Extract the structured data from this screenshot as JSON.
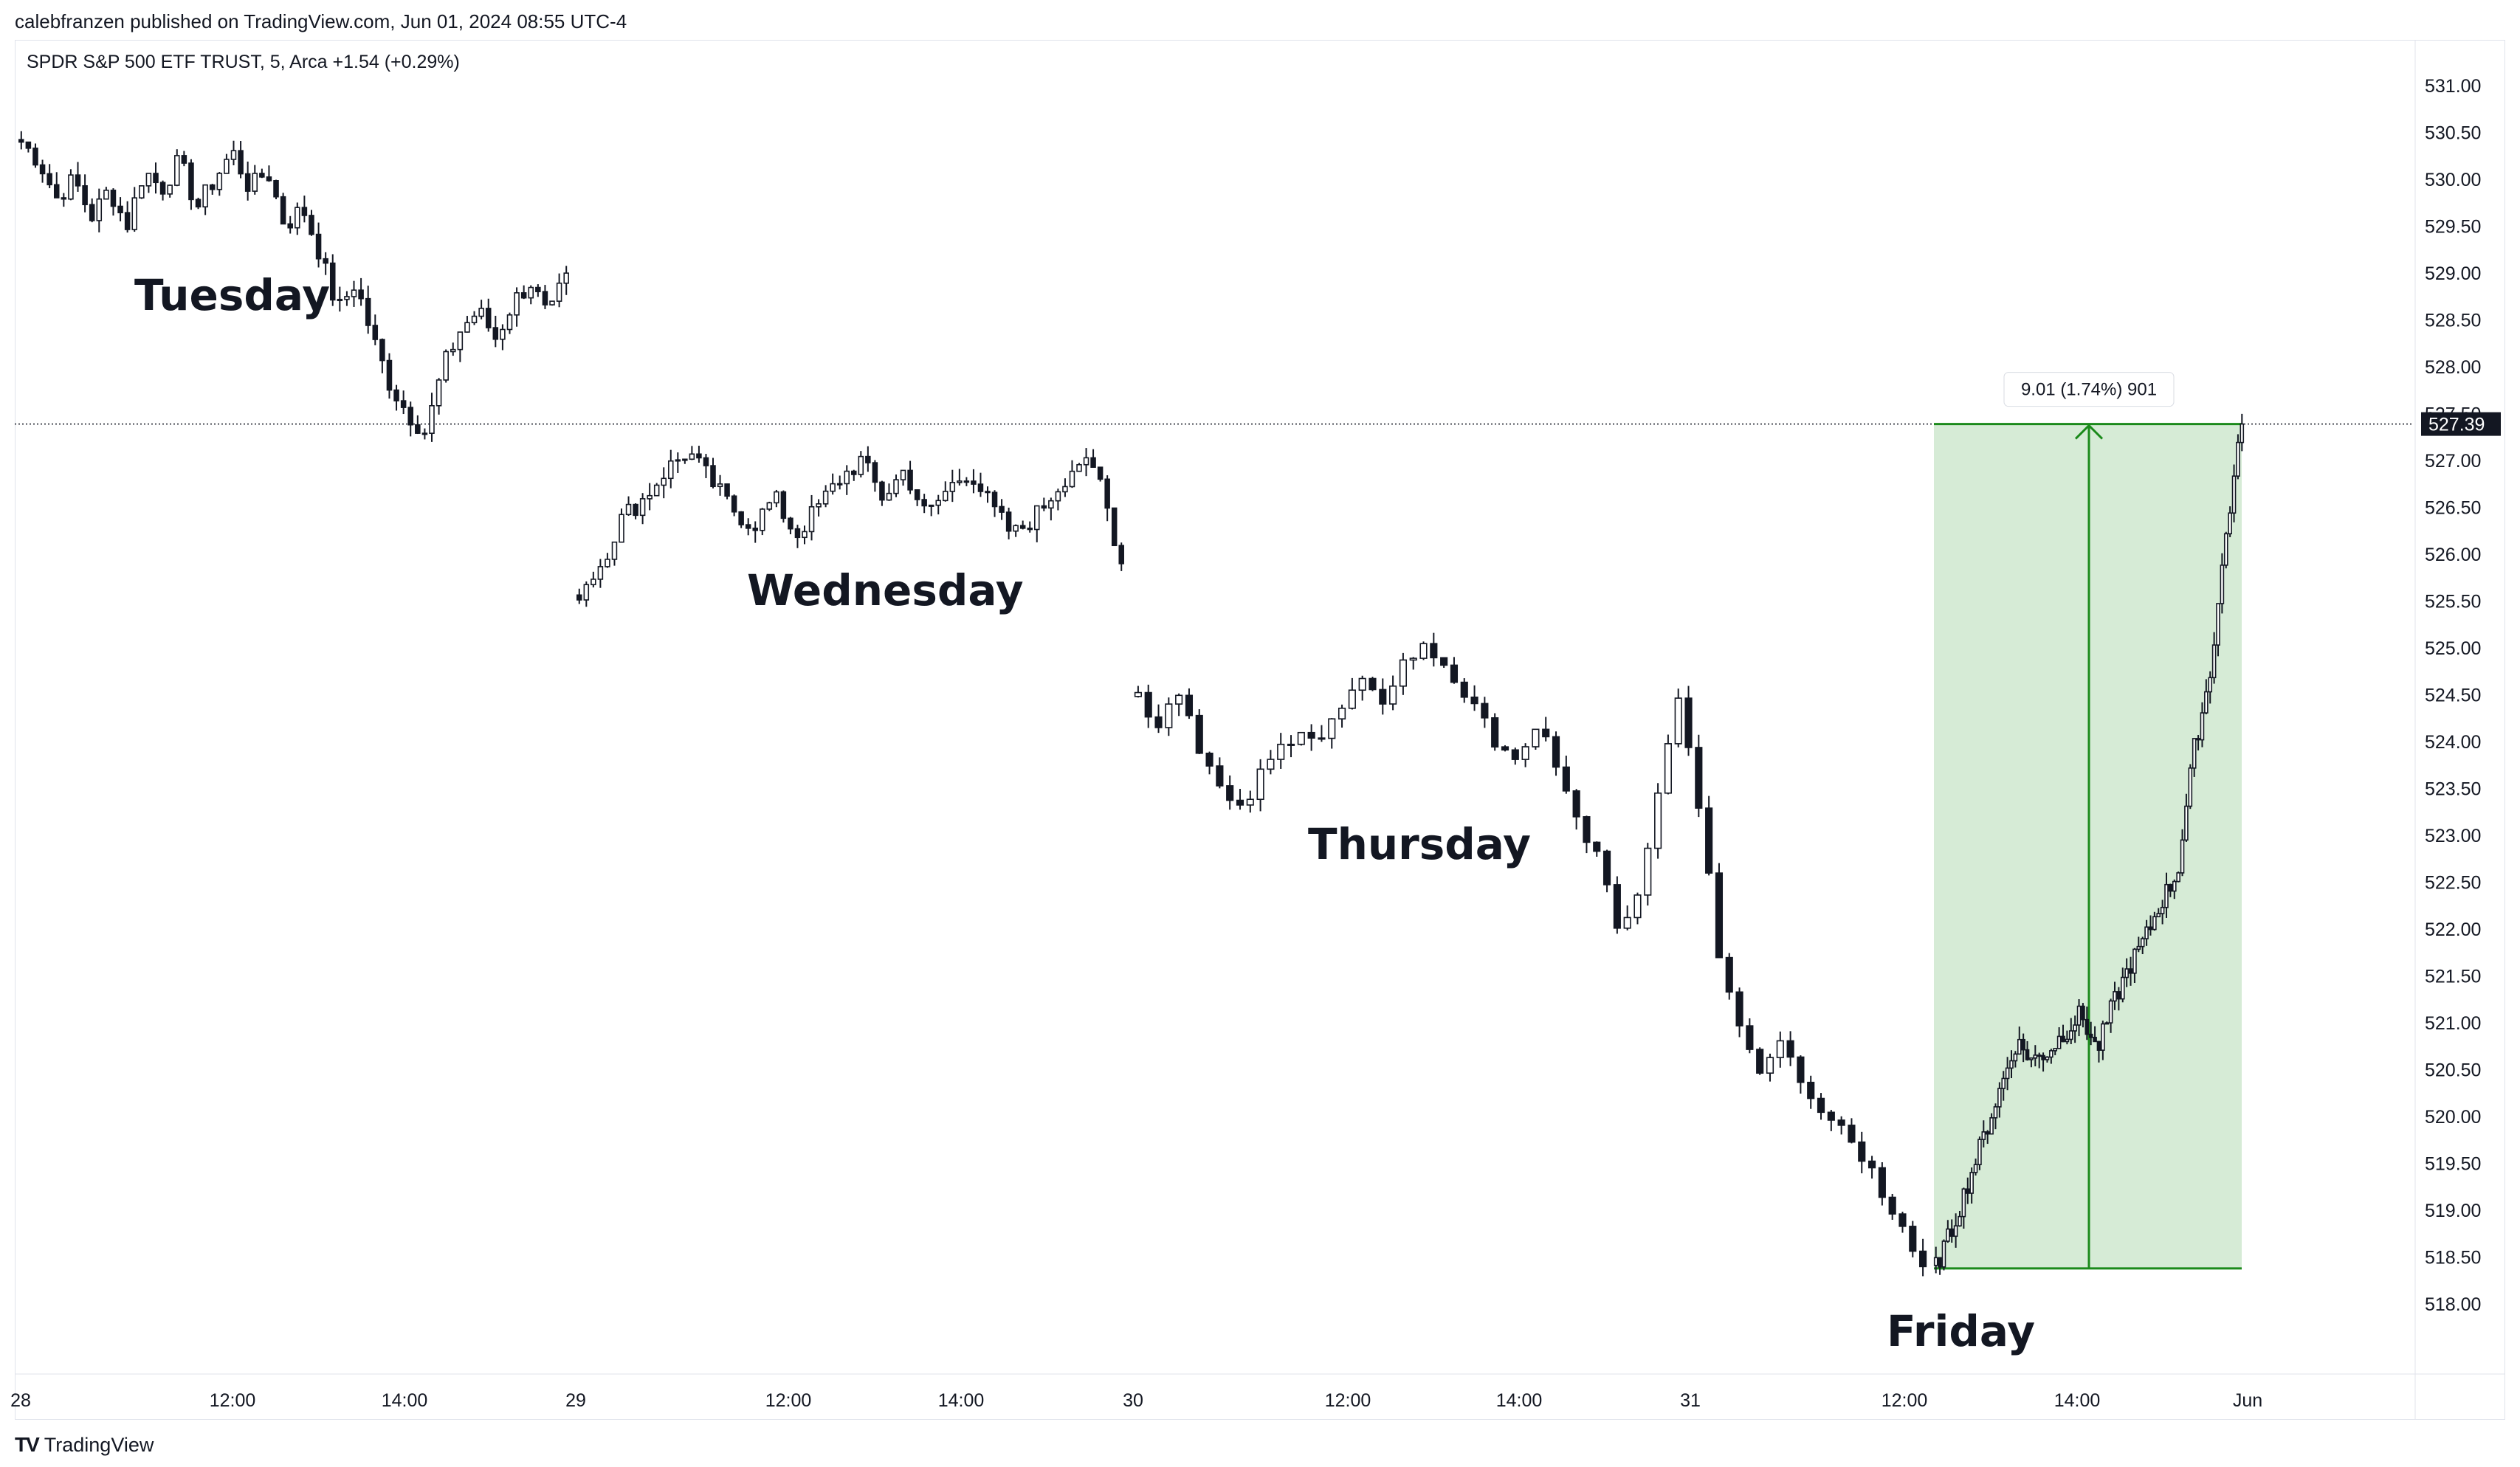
{
  "header": {
    "published_line": "calebfranzen published on TradingView.com, Jun 01, 2024 08:55 UTC-4",
    "symbol_line": "SPDR S&P 500 ETF TRUST, 5, Arca  +1.54 (+0.29%)"
  },
  "footer": {
    "brand": "TradingView",
    "logo": "TV"
  },
  "chart_data": {
    "type": "candlestick",
    "title": "",
    "xlabel": "",
    "ylabel": "",
    "ylim": [
      517.6,
      531.3
    ],
    "y_ticks": [
      "531.00",
      "530.50",
      "530.00",
      "529.50",
      "529.00",
      "528.50",
      "528.00",
      "527.50",
      "527.00",
      "526.50",
      "526.00",
      "525.50",
      "525.00",
      "524.50",
      "524.00",
      "523.50",
      "523.00",
      "522.50",
      "522.00",
      "521.50",
      "521.00",
      "520.50",
      "520.00",
      "519.50",
      "519.00",
      "518.50",
      "518.00"
    ],
    "x_ticks": [
      "28",
      "12:00",
      "14:00",
      "29",
      "12:00",
      "14:00",
      "30",
      "12:00",
      "14:00",
      "31",
      "12:00",
      "14:00",
      "Jun"
    ],
    "last_price": 527.39,
    "last_price_label": "527.39",
    "day_labels": [
      "Tuesday",
      "Wednesday",
      "Thursday",
      "Friday"
    ],
    "measure": {
      "label": "9.01 (1.74%) 901",
      "low": 518.38,
      "high": 527.39,
      "color": "#1b8a1b",
      "fill": "#d6ebd6"
    },
    "sessions": [
      {
        "name": "Tuesday",
        "path": [
          530.4,
          530.2,
          529.8,
          530.0,
          529.6,
          529.9,
          529.5,
          530.1,
          529.9,
          530.2,
          529.7,
          530.0,
          530.3,
          529.9,
          530.1,
          529.5,
          529.7,
          529.2,
          528.6,
          528.9,
          528.3,
          527.8,
          527.5,
          527.3,
          528.0,
          528.4,
          528.6,
          528.3,
          528.7,
          528.9,
          528.5,
          529.0
        ]
      },
      {
        "name": "Wednesday",
        "path": [
          525.6,
          525.9,
          526.4,
          526.6,
          526.9,
          527.1,
          526.8,
          526.5,
          526.3,
          526.6,
          526.2,
          526.5,
          526.8,
          527.0,
          526.6,
          526.9,
          526.4,
          526.7,
          526.9,
          526.5,
          526.2,
          526.4,
          526.7,
          527.0,
          526.8,
          525.9
        ]
      },
      {
        "name": "Thursday",
        "path": [
          524.5,
          524.2,
          524.6,
          524.0,
          523.5,
          523.2,
          523.6,
          523.9,
          524.2,
          524.0,
          524.3,
          524.6,
          524.4,
          524.8,
          525.0,
          524.9,
          524.6,
          524.2,
          524.0,
          523.8,
          524.1,
          523.7,
          523.0,
          522.7,
          521.9,
          522.4,
          523.6,
          524.6,
          523.0,
          521.6,
          520.9,
          520.5,
          520.9,
          520.4,
          520.1,
          519.9,
          519.6,
          519.2,
          518.9,
          518.4
        ]
      },
      {
        "name": "Friday",
        "path": [
          518.4,
          518.8,
          519.3,
          519.8,
          520.3,
          520.8,
          520.6,
          520.7,
          520.9,
          521.1,
          520.7,
          521.2,
          521.6,
          521.9,
          522.3,
          522.6,
          523.9,
          524.7,
          526.2,
          527.39
        ]
      }
    ]
  }
}
